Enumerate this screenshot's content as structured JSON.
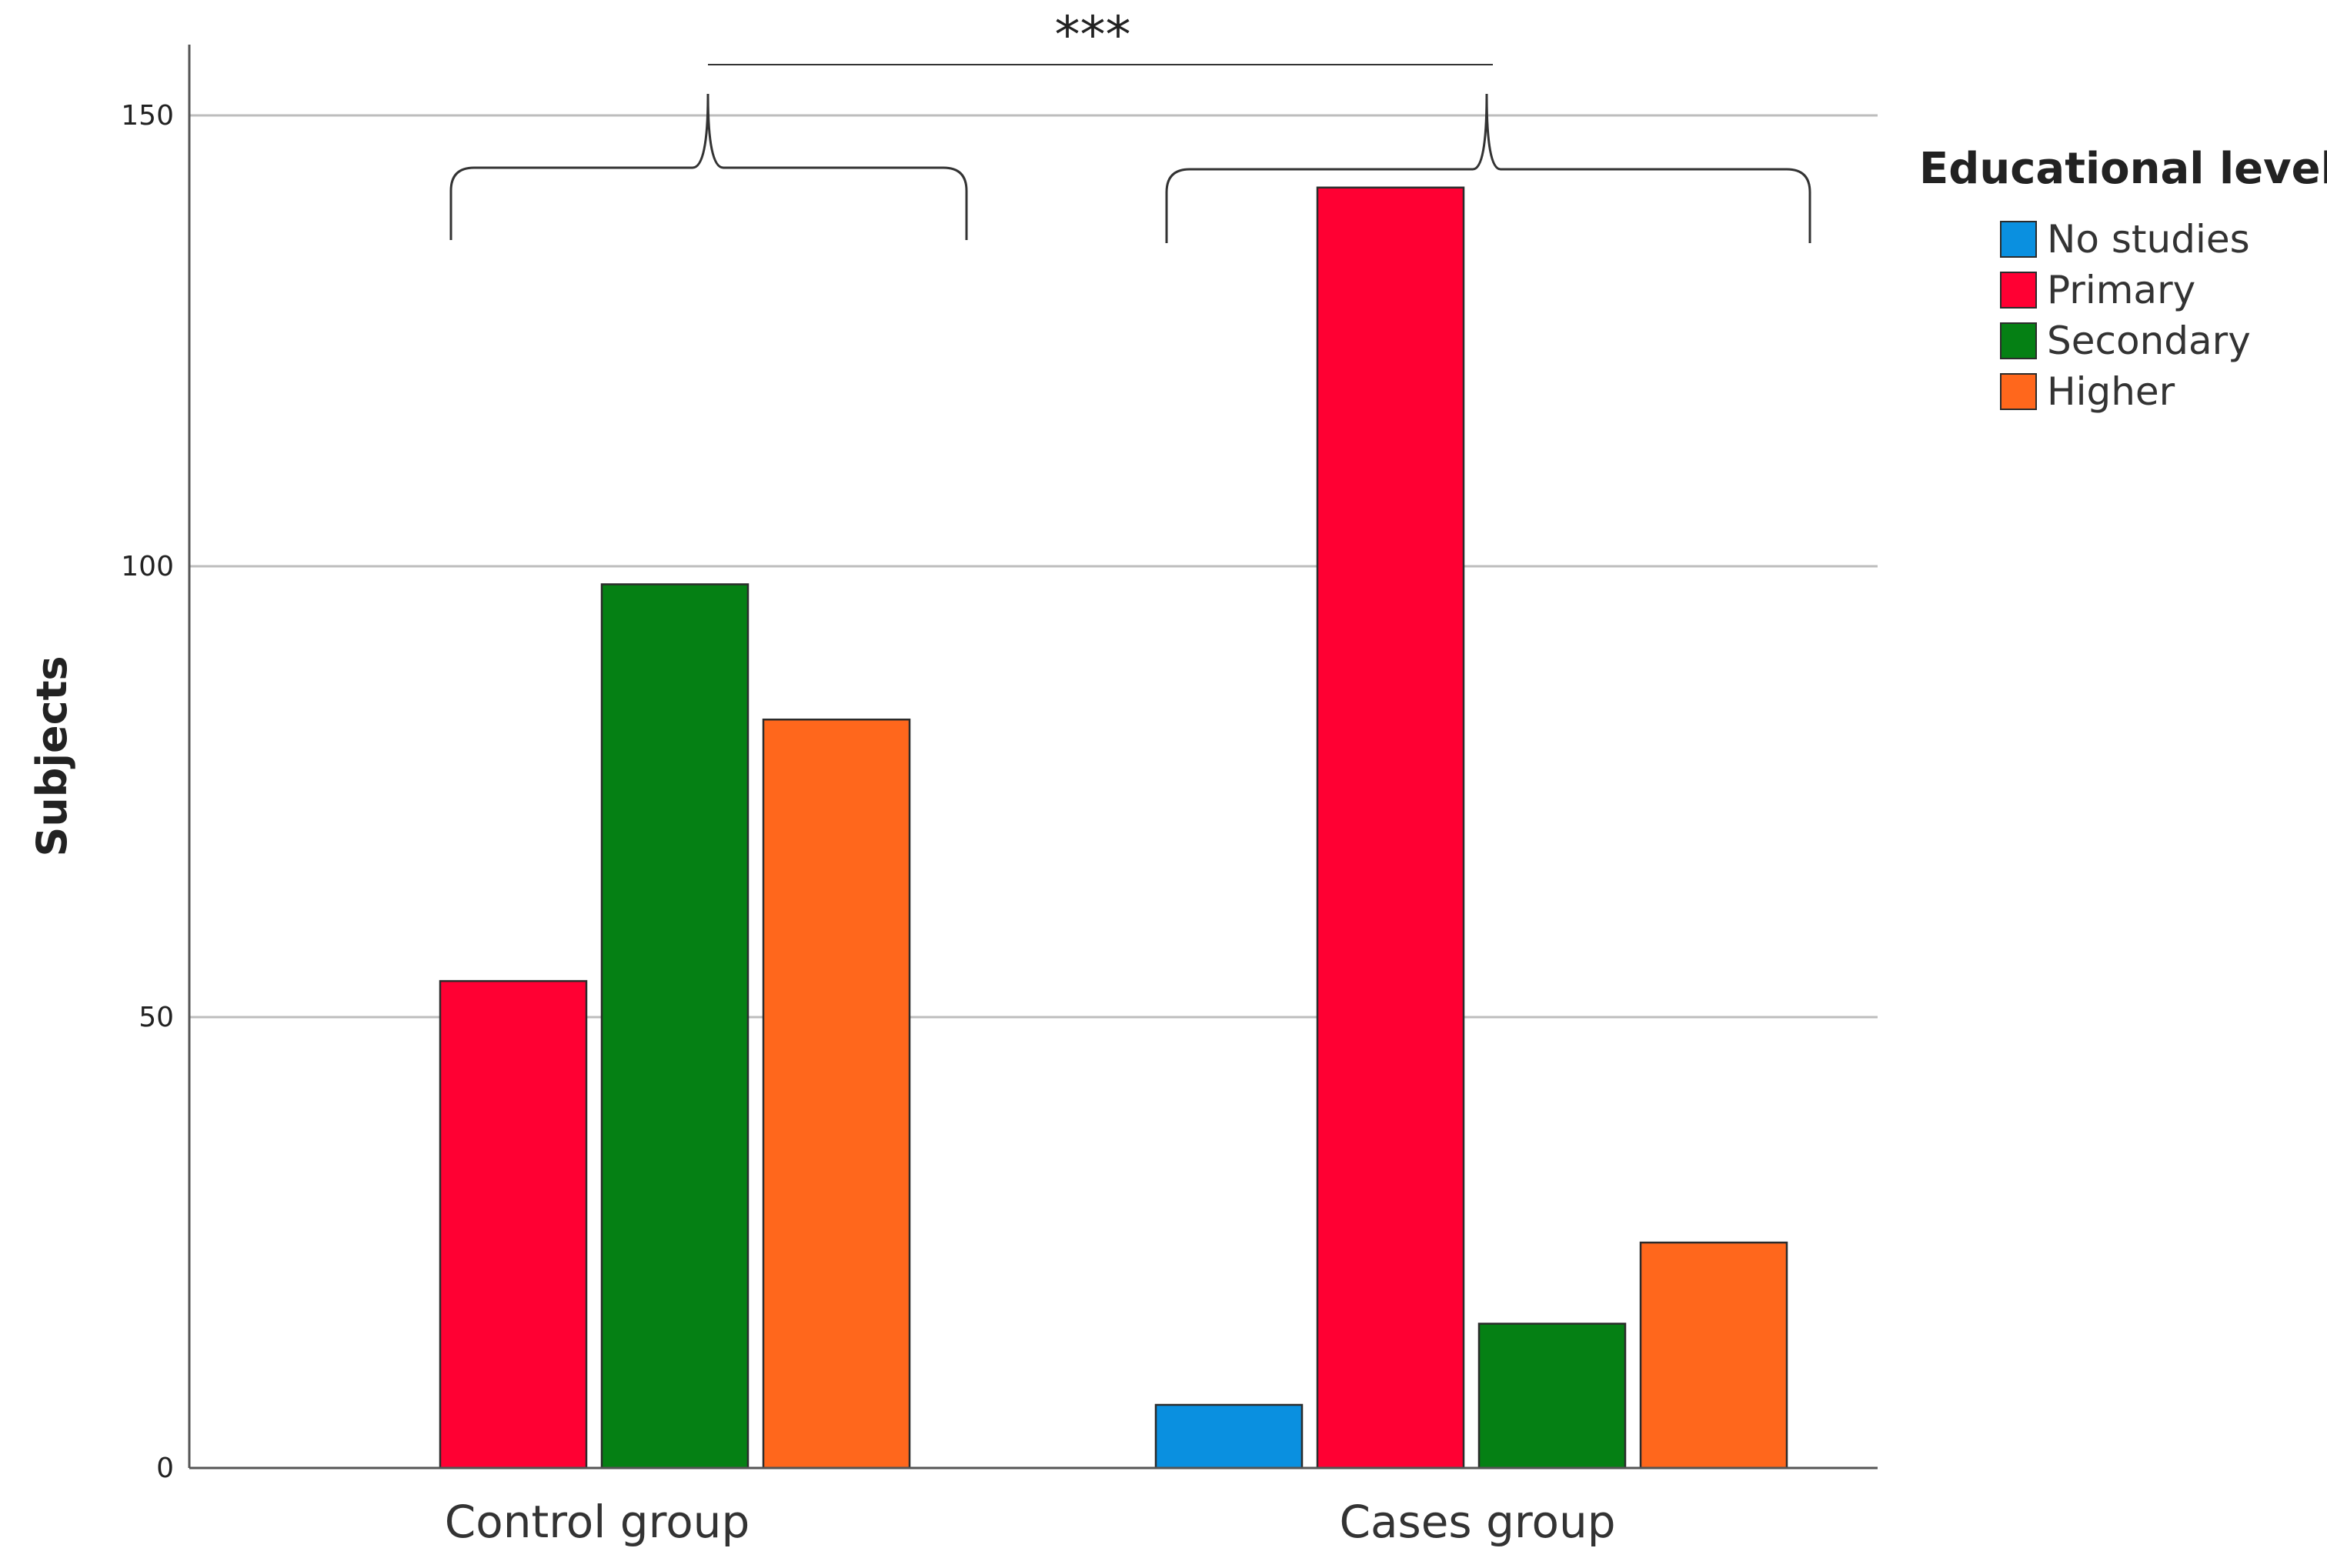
{
  "chart_data": {
    "type": "bar",
    "title": "",
    "xlabel": "",
    "ylabel": "Subjects",
    "ylim": [
      0,
      150
    ],
    "yticks": [
      0,
      50,
      100,
      150
    ],
    "grid": true,
    "categories": [
      "Control group",
      "Cases group"
    ],
    "series": [
      {
        "name": "No studies",
        "values": [
          0,
          7
        ],
        "color": "#0a90e0"
      },
      {
        "name": "Primary",
        "values": [
          54,
          142
        ],
        "color": "#ff0033"
      },
      {
        "name": "Secondary",
        "values": [
          98,
          16
        ],
        "color": "#058014"
      },
      {
        "name": "Higher",
        "values": [
          83,
          25
        ],
        "color": "#ff671c"
      }
    ],
    "legend": {
      "title": "Educational level",
      "placement": "right"
    },
    "annotation": {
      "text": "***"
    }
  }
}
